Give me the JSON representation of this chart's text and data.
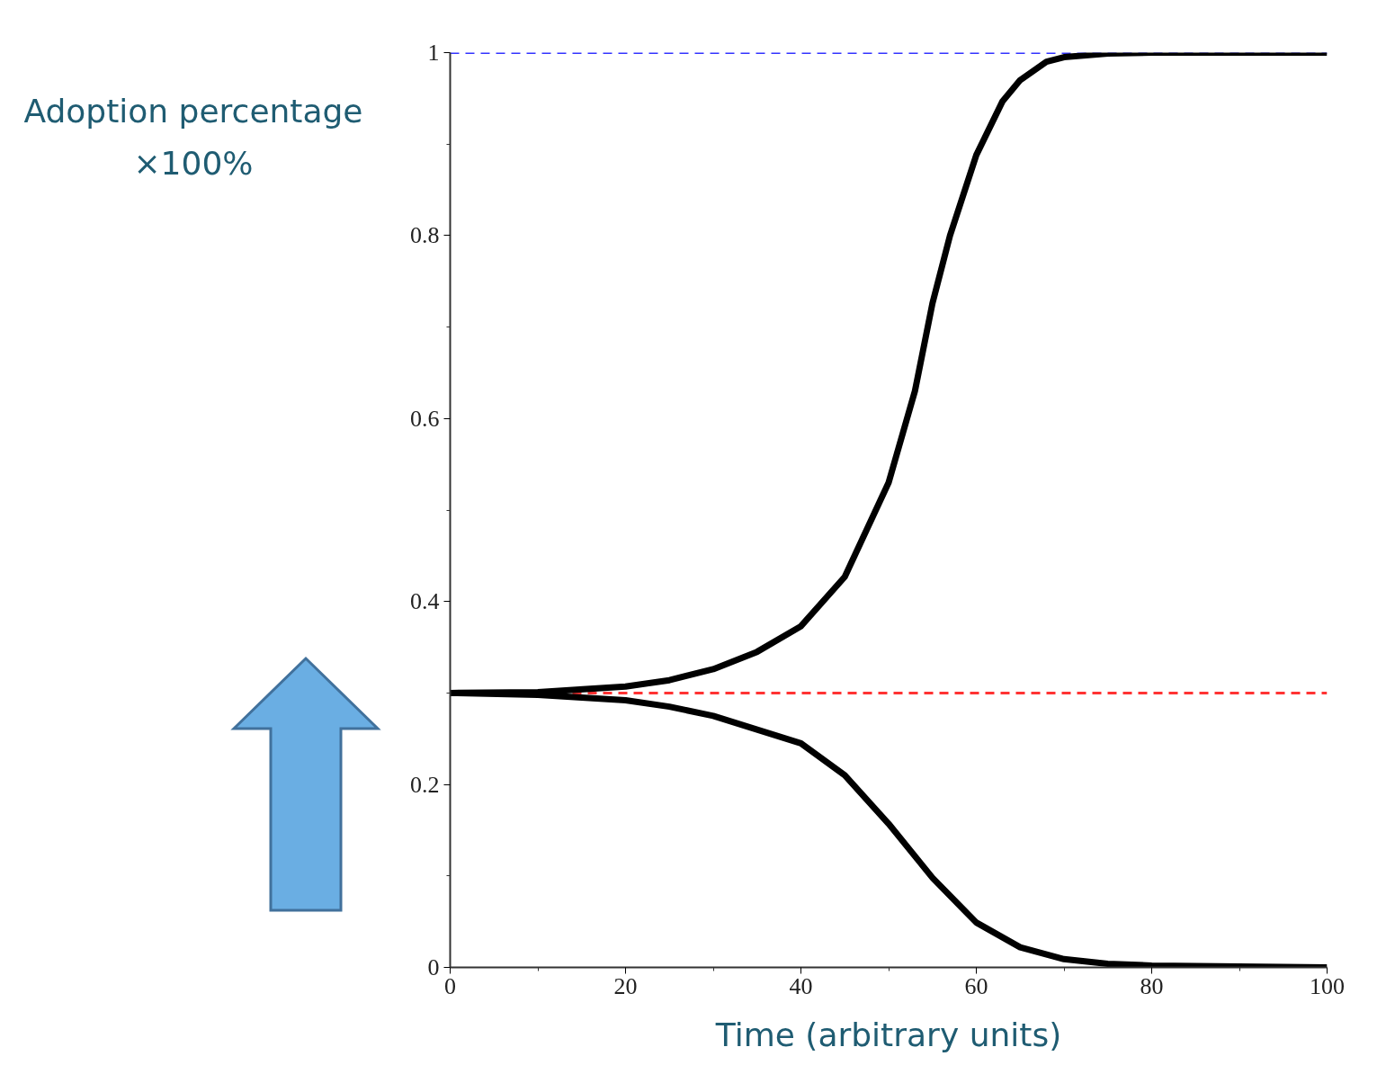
{
  "chart_data": {
    "type": "line",
    "xlabel": "Time (arbitrary units)",
    "ylabel": "Adoption percentage ×100%",
    "xlim": [
      0,
      100
    ],
    "ylim": [
      0,
      1
    ],
    "xticks": [
      0,
      20,
      40,
      60,
      80,
      100
    ],
    "yticks": [
      0,
      0.2,
      0.4,
      0.6,
      0.8,
      1
    ],
    "grid": false,
    "marker": "none",
    "line_style": "solid",
    "series": [
      {
        "color": "#000000",
        "x": [
          0,
          10,
          20,
          25,
          30,
          35,
          40,
          45,
          50,
          53,
          55,
          57,
          60,
          63,
          65,
          68,
          70,
          75,
          80,
          100
        ],
        "values": [
          0.3,
          0.301,
          0.307,
          0.314,
          0.326,
          0.345,
          0.373,
          0.427,
          0.53,
          0.63,
          0.726,
          0.8,
          0.888,
          0.947,
          0.97,
          0.99,
          0.995,
          0.999,
          1.0,
          1.0
        ]
      },
      {
        "color": "#000000",
        "x": [
          0,
          10,
          20,
          25,
          30,
          35,
          40,
          45,
          50,
          55,
          60,
          65,
          70,
          75,
          80,
          90,
          100
        ],
        "values": [
          0.3,
          0.298,
          0.292,
          0.285,
          0.275,
          0.26,
          0.245,
          0.21,
          0.157,
          0.098,
          0.049,
          0.022,
          0.009,
          0.004,
          0.002,
          0.001,
          0.0
        ]
      }
    ],
    "ref_lines": [
      {
        "axis": "y",
        "value": 1,
        "color": "#3333ff",
        "line_style": "dashed"
      },
      {
        "axis": "y",
        "value": 0.3,
        "color": "#ff3333",
        "line_style": "dashed"
      }
    ]
  }
}
